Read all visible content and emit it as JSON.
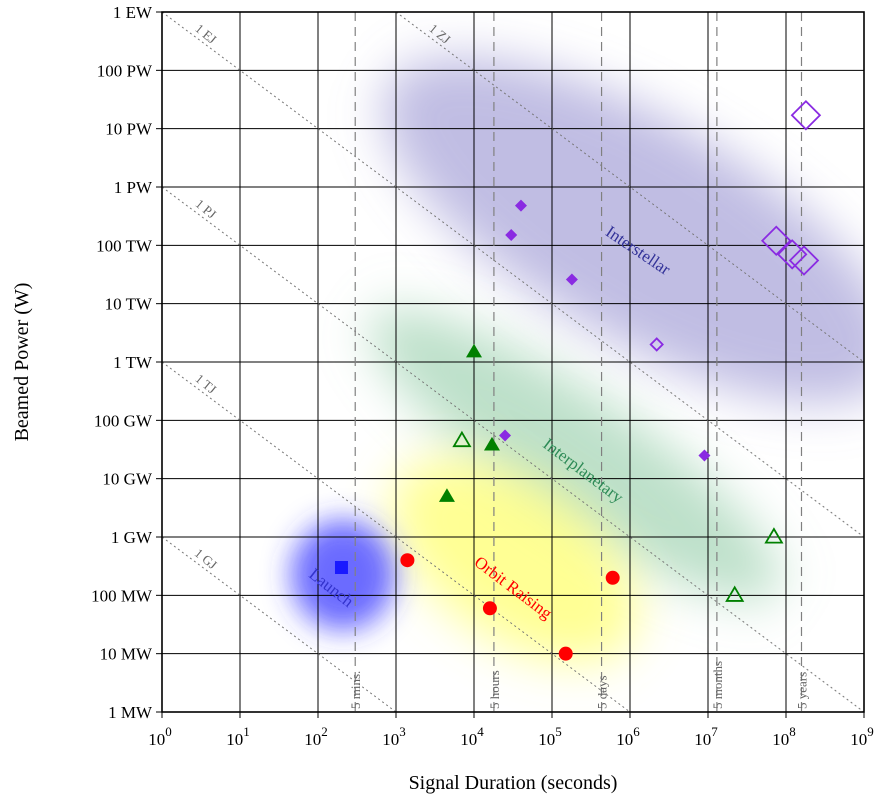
{
  "chart_data": {
    "type": "scatter",
    "xlabel": "Signal Duration (seconds)",
    "ylabel": "Beamed Power (W)",
    "x_scale": "log",
    "y_scale": "log",
    "xlim": [
      1,
      1000000000
    ],
    "ylim": [
      1000000,
      1000000000000000000
    ],
    "grid": true,
    "x_ticks": [
      {
        "value": 1,
        "base": "10",
        "exp": "0"
      },
      {
        "value": 10,
        "base": "10",
        "exp": "1"
      },
      {
        "value": 100,
        "base": "10",
        "exp": "2"
      },
      {
        "value": 1000,
        "base": "10",
        "exp": "3"
      },
      {
        "value": 10000,
        "base": "10",
        "exp": "4"
      },
      {
        "value": 100000,
        "base": "10",
        "exp": "5"
      },
      {
        "value": 1000000,
        "base": "10",
        "exp": "6"
      },
      {
        "value": 10000000,
        "base": "10",
        "exp": "7"
      },
      {
        "value": 100000000,
        "base": "10",
        "exp": "8"
      },
      {
        "value": 1000000000,
        "base": "10",
        "exp": "9"
      }
    ],
    "y_ticks": [
      {
        "value": 1000000.0,
        "label": "1 MW"
      },
      {
        "value": 10000000.0,
        "label": "10 MW"
      },
      {
        "value": 100000000.0,
        "label": "100 MW"
      },
      {
        "value": 1000000000.0,
        "label": "1 GW"
      },
      {
        "value": 10000000000.0,
        "label": "10 GW"
      },
      {
        "value": 100000000000.0,
        "label": "100 GW"
      },
      {
        "value": 1000000000000.0,
        "label": "1 TW"
      },
      {
        "value": 10000000000000.0,
        "label": "10 TW"
      },
      {
        "value": 100000000000000.0,
        "label": "100 TW"
      },
      {
        "value": 1000000000000000.0,
        "label": "1 PW"
      },
      {
        "value": 1e+16,
        "label": "10 PW"
      },
      {
        "value": 1e+17,
        "label": "100 PW"
      },
      {
        "value": 1e+18,
        "label": "1 EW"
      }
    ],
    "energy_lines": [
      {
        "label": "1 GJ",
        "joules": 1000000000.0
      },
      {
        "label": "1 TJ",
        "joules": 1000000000000.0
      },
      {
        "label": "1 PJ",
        "joules": 1000000000000000.0
      },
      {
        "label": "1 EJ",
        "joules": 1e+18
      },
      {
        "label": "1 ZJ",
        "joules": 1e+21
      }
    ],
    "duration_markers": [
      {
        "label": "5 mins.",
        "seconds": 300
      },
      {
        "label": "5 hours",
        "seconds": 18000
      },
      {
        "label": "5 days",
        "seconds": 432000
      },
      {
        "label": "5 months",
        "seconds": 13000000
      },
      {
        "label": "5 years",
        "seconds": 158000000
      }
    ],
    "regions": [
      {
        "label": "Launch",
        "color": "#3333ff"
      },
      {
        "label": "Orbit Raising",
        "color": "#ff0000"
      },
      {
        "label": "Interplanetary",
        "color": "#2e8b57"
      },
      {
        "label": "Interstellar",
        "color": "#333399"
      }
    ],
    "series": [
      {
        "marker": "square",
        "filled": true,
        "color": "#1a1aff",
        "points": [
          {
            "x": 200,
            "y": 300000000.0
          }
        ]
      },
      {
        "marker": "circle",
        "filled": true,
        "color": "#ff0000",
        "points": [
          {
            "x": 1400,
            "y": 400000000.0
          },
          {
            "x": 16000,
            "y": 60000000.0
          },
          {
            "x": 150000,
            "y": 10000000.0
          },
          {
            "x": 600000,
            "y": 200000000.0
          }
        ]
      },
      {
        "marker": "triangle",
        "filled": true,
        "color": "#008000",
        "points": [
          {
            "x": 4500,
            "y": 5000000000.0
          },
          {
            "x": 10000,
            "y": 1500000000000.0
          },
          {
            "x": 17000,
            "y": 38000000000.0
          }
        ]
      },
      {
        "marker": "triangle",
        "filled": false,
        "color": "#008000",
        "points": [
          {
            "x": 7000,
            "y": 45000000000.0
          },
          {
            "x": 22000000,
            "y": 100000000.0
          },
          {
            "x": 70000000,
            "y": 1000000000.0
          }
        ]
      },
      {
        "marker": "diamond",
        "filled": true,
        "color": "#8a2be2",
        "size": "small",
        "points": [
          {
            "x": 40000,
            "y": 480000000000000.0
          },
          {
            "x": 30000,
            "y": 150000000000000.0
          },
          {
            "x": 180000,
            "y": 26000000000000.0
          },
          {
            "x": 25000,
            "y": 55000000000.0
          },
          {
            "x": 9000000,
            "y": 25000000000.0
          }
        ]
      },
      {
        "marker": "diamond",
        "filled": false,
        "color": "#8a2be2",
        "size": "small",
        "points": [
          {
            "x": 2200000,
            "y": 2000000000000.0
          }
        ]
      },
      {
        "marker": "diamond",
        "filled": false,
        "color": "#8a2be2",
        "size": "large",
        "points": [
          {
            "x": 180000000,
            "y": 1.7e+16
          },
          {
            "x": 75000000,
            "y": 120000000000000.0
          },
          {
            "x": 120000000,
            "y": 70000000000000.0
          },
          {
            "x": 170000000,
            "y": 55000000000000.0
          }
        ]
      }
    ]
  }
}
